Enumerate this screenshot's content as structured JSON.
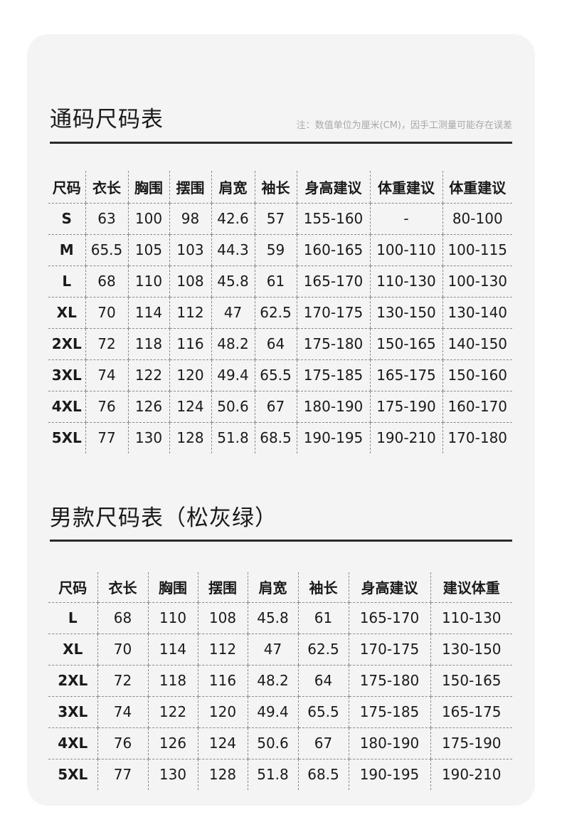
{
  "section1": {
    "title": "通码尺码表",
    "note": "注：数值单位为厘米(CM)，因手工测量可能存在误差",
    "headers": [
      "尺码",
      "衣长",
      "胸围",
      "摆围",
      "肩宽",
      "袖长",
      "身高建议",
      "体重建议",
      "体重建议"
    ],
    "rows": [
      [
        "S",
        "63",
        "100",
        "98",
        "42.6",
        "57",
        "155-160",
        "-",
        "80-100"
      ],
      [
        "M",
        "65.5",
        "105",
        "103",
        "44.3",
        "59",
        "160-165",
        "100-110",
        "100-115"
      ],
      [
        "L",
        "68",
        "110",
        "108",
        "45.8",
        "61",
        "165-170",
        "110-130",
        "100-130"
      ],
      [
        "XL",
        "70",
        "114",
        "112",
        "47",
        "62.5",
        "170-175",
        "130-150",
        "130-140"
      ],
      [
        "2XL",
        "72",
        "118",
        "116",
        "48.2",
        "64",
        "175-180",
        "150-165",
        "140-150"
      ],
      [
        "3XL",
        "74",
        "122",
        "120",
        "49.4",
        "65.5",
        "175-185",
        "165-175",
        "150-160"
      ],
      [
        "4XL",
        "76",
        "126",
        "124",
        "50.6",
        "67",
        "180-190",
        "175-190",
        "160-170"
      ],
      [
        "5XL",
        "77",
        "130",
        "128",
        "51.8",
        "68.5",
        "190-195",
        "190-210",
        "170-180"
      ]
    ]
  },
  "section2": {
    "title": "男款尺码表（松灰绿）",
    "headers": [
      "尺码",
      "衣长",
      "胸围",
      "摆围",
      "肩宽",
      "袖长",
      "身高建议",
      "建议体重"
    ],
    "rows": [
      [
        "L",
        "68",
        "110",
        "108",
        "45.8",
        "61",
        "165-170",
        "110-130"
      ],
      [
        "XL",
        "70",
        "114",
        "112",
        "47",
        "62.5",
        "170-175",
        "130-150"
      ],
      [
        "2XL",
        "72",
        "118",
        "116",
        "48.2",
        "64",
        "175-180",
        "150-165"
      ],
      [
        "3XL",
        "74",
        "122",
        "120",
        "49.4",
        "65.5",
        "175-185",
        "165-175"
      ],
      [
        "4XL",
        "76",
        "126",
        "124",
        "50.6",
        "67",
        "180-190",
        "175-190"
      ],
      [
        "5XL",
        "77",
        "130",
        "128",
        "51.8",
        "68.5",
        "190-195",
        "190-210"
      ]
    ]
  }
}
